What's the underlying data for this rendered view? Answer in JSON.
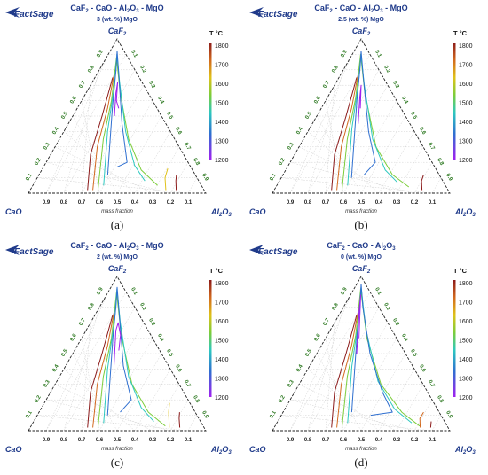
{
  "panels": [
    {
      "caption": "(a)",
      "logo": "FactSage",
      "title_species": [
        "CaF",
        "2",
        " - CaO - Al",
        "2",
        "O",
        "3",
        " - MgO"
      ],
      "subtitle": "3 (wt. %) MgO",
      "apex_top": "CaF",
      "apex_top_sub": "2",
      "apex_left": "CaO",
      "apex_right": "Al",
      "apex_right_sub": [
        "2",
        "O",
        "3"
      ],
      "axis_caption": "mass fraction"
    },
    {
      "caption": "(b)",
      "logo": "FactSage",
      "title_species": [
        "CaF",
        "2",
        " - CaO - Al",
        "2",
        "O",
        "3",
        " - MgO"
      ],
      "subtitle": "2.5 (wt. %) MgO",
      "apex_top": "CaF",
      "apex_top_sub": "2",
      "apex_left": "CaO",
      "apex_right": "Al",
      "apex_right_sub": [
        "2",
        "O",
        "3"
      ],
      "axis_caption": "mass fraction"
    },
    {
      "caption": "(c)",
      "logo": "FactSage",
      "title_species": [
        "CaF",
        "2",
        " - CaO - Al",
        "2",
        "O",
        "3",
        " - MgO"
      ],
      "subtitle": "2 (wt. %) MgO",
      "apex_top": "CaF",
      "apex_top_sub": "2",
      "apex_left": "CaO",
      "apex_right": "Al",
      "apex_right_sub": [
        "2",
        "O",
        "3"
      ],
      "axis_caption": "mass fraction"
    },
    {
      "caption": "(d)",
      "logo": "FactSage",
      "title_species": [
        "CaF",
        "2",
        " - CaO - Al",
        "2",
        "O",
        "3",
        ""
      ],
      "subtitle": "0 (wt. %) MgO",
      "apex_top": "CaF",
      "apex_top_sub": "2",
      "apex_left": "CaO",
      "apex_right": "Al",
      "apex_right_sub": [
        "2",
        "O",
        "3"
      ],
      "axis_caption": "mass fraction"
    }
  ],
  "tick_labels": [
    "0.9",
    "0.8",
    "0.7",
    "0.6",
    "0.5",
    "0.4",
    "0.3",
    "0.2",
    "0.1"
  ],
  "colorbar": {
    "title": "T °C",
    "labels": [
      "1800",
      "1700",
      "1600",
      "1500",
      "1400",
      "1300",
      "1200"
    ],
    "colors": [
      "#8b1a1a",
      "#d2691e",
      "#e0c21a",
      "#7ccd3a",
      "#2ec8c0",
      "#2f6fd0",
      "#6a2fc0",
      "#a020f0"
    ]
  }
}
